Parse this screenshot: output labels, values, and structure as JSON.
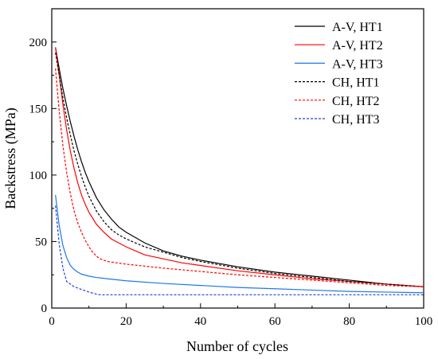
{
  "chart_data": {
    "type": "line",
    "xlabel": "Number of cycles",
    "ylabel": "Backstress (MPa)",
    "xlim": [
      0,
      100
    ],
    "ylim": [
      0,
      225
    ],
    "x_ticks": [
      0,
      20,
      40,
      60,
      80,
      100
    ],
    "y_ticks": [
      0,
      50,
      100,
      150,
      200
    ],
    "grid": false,
    "legend_position": "top-right",
    "series": [
      {
        "name": "A-V, HT1",
        "color": "#000000",
        "dash": "solid",
        "points": [
          [
            1,
            196
          ],
          [
            2,
            180
          ],
          [
            3,
            165
          ],
          [
            4,
            152
          ],
          [
            5,
            140
          ],
          [
            6,
            129
          ],
          [
            7,
            119
          ],
          [
            8,
            110
          ],
          [
            9,
            102
          ],
          [
            10,
            95
          ],
          [
            12,
            83
          ],
          [
            14,
            74
          ],
          [
            16,
            67
          ],
          [
            18,
            61
          ],
          [
            20,
            57
          ],
          [
            25,
            49
          ],
          [
            30,
            43
          ],
          [
            35,
            39
          ],
          [
            40,
            36
          ],
          [
            50,
            31
          ],
          [
            60,
            27
          ],
          [
            70,
            24
          ],
          [
            80,
            21
          ],
          [
            90,
            18
          ],
          [
            100,
            16
          ]
        ]
      },
      {
        "name": "A-V, HT2",
        "color": "#ff0000",
        "dash": "solid",
        "points": [
          [
            1,
            196
          ],
          [
            2,
            175
          ],
          [
            3,
            153
          ],
          [
            4,
            134
          ],
          [
            5,
            118
          ],
          [
            6,
            105
          ],
          [
            7,
            94
          ],
          [
            8,
            85
          ],
          [
            9,
            78
          ],
          [
            10,
            72
          ],
          [
            12,
            63
          ],
          [
            14,
            57
          ],
          [
            16,
            52
          ],
          [
            18,
            49
          ],
          [
            20,
            46
          ],
          [
            25,
            40
          ],
          [
            30,
            37
          ],
          [
            35,
            34
          ],
          [
            40,
            32
          ],
          [
            50,
            28
          ],
          [
            60,
            25
          ],
          [
            70,
            22
          ],
          [
            80,
            20
          ],
          [
            90,
            18
          ],
          [
            100,
            16
          ]
        ]
      },
      {
        "name": "A-V, HT3",
        "color": "#1f78e8",
        "dash": "solid",
        "points": [
          [
            1,
            85
          ],
          [
            2,
            62
          ],
          [
            3,
            47
          ],
          [
            4,
            38
          ],
          [
            5,
            32
          ],
          [
            6,
            29
          ],
          [
            7,
            27
          ],
          [
            8,
            25.5
          ],
          [
            10,
            24
          ],
          [
            12,
            23
          ],
          [
            15,
            22
          ],
          [
            20,
            20.5
          ],
          [
            30,
            18.5
          ],
          [
            40,
            17
          ],
          [
            50,
            15.5
          ],
          [
            60,
            14.5
          ],
          [
            70,
            13.5
          ],
          [
            80,
            12.5
          ],
          [
            90,
            12
          ],
          [
            100,
            11.5
          ]
        ]
      },
      {
        "name": "CH, HT1",
        "color": "#000000",
        "dash": "dashed",
        "points": [
          [
            1,
            192
          ],
          [
            2,
            175
          ],
          [
            3,
            158
          ],
          [
            4,
            143
          ],
          [
            5,
            130
          ],
          [
            6,
            118
          ],
          [
            7,
            108
          ],
          [
            8,
            99
          ],
          [
            9,
            91
          ],
          [
            10,
            84
          ],
          [
            12,
            73
          ],
          [
            14,
            65
          ],
          [
            16,
            59
          ],
          [
            18,
            55
          ],
          [
            20,
            52
          ],
          [
            25,
            46
          ],
          [
            30,
            42
          ],
          [
            35,
            38
          ],
          [
            40,
            35
          ],
          [
            50,
            30
          ],
          [
            60,
            26
          ],
          [
            70,
            23
          ],
          [
            80,
            20
          ],
          [
            90,
            18
          ],
          [
            100,
            16
          ]
        ]
      },
      {
        "name": "CH, HT2",
        "color": "#ff0000",
        "dash": "dashed",
        "points": [
          [
            1,
            180
          ],
          [
            2,
            148
          ],
          [
            3,
            122
          ],
          [
            4,
            102
          ],
          [
            5,
            86
          ],
          [
            6,
            73
          ],
          [
            7,
            64
          ],
          [
            8,
            57
          ],
          [
            9,
            51
          ],
          [
            10,
            46
          ],
          [
            11,
            42
          ],
          [
            12,
            39
          ],
          [
            13,
            37
          ],
          [
            15,
            35
          ],
          [
            20,
            33
          ],
          [
            30,
            30
          ],
          [
            40,
            27.5
          ],
          [
            50,
            25
          ],
          [
            60,
            23
          ],
          [
            70,
            21
          ],
          [
            80,
            19
          ],
          [
            90,
            17
          ],
          [
            100,
            16
          ]
        ]
      },
      {
        "name": "CH, HT3",
        "color": "#1f3fdc",
        "dash": "dashed",
        "points": [
          [
            1,
            77
          ],
          [
            2,
            48
          ],
          [
            3,
            30
          ],
          [
            4,
            20
          ],
          [
            5,
            18
          ],
          [
            6,
            16
          ],
          [
            8,
            14
          ],
          [
            10,
            12
          ],
          [
            12,
            10.5
          ],
          [
            13,
            10
          ],
          [
            20,
            10
          ],
          [
            40,
            10
          ],
          [
            60,
            10
          ],
          [
            80,
            10
          ],
          [
            100,
            10
          ]
        ]
      }
    ]
  }
}
